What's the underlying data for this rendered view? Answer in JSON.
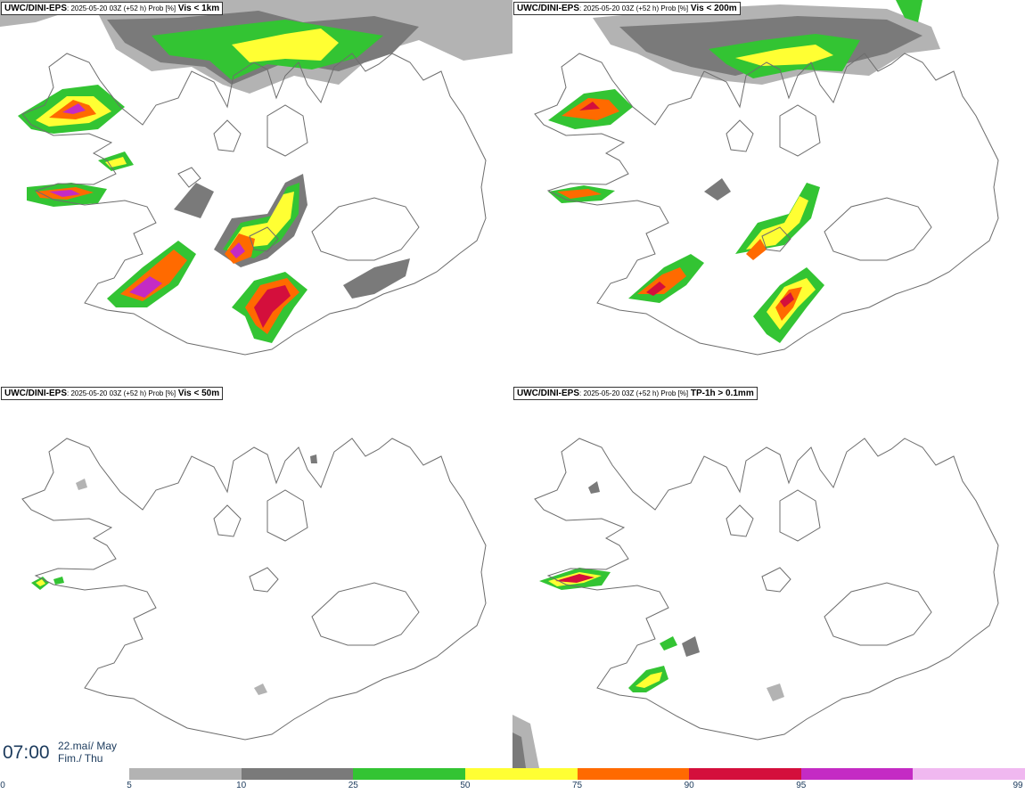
{
  "panels": [
    {
      "title_prefix": "UWC/DINI-EPS",
      "run_info": ": 2025-05-20 03Z (+52 h) Prob [%]",
      "variable": "Vis < 1km"
    },
    {
      "title_prefix": "UWC/DINI-EPS",
      "run_info": ": 2025-05-20 03Z (+52 h) Prob [%]",
      "variable": "Vis < 200m"
    },
    {
      "title_prefix": "UWC/DINI-EPS",
      "run_info": ": 2025-05-20 03Z (+52 h) Prob [%]",
      "variable": "Vis < 50m"
    },
    {
      "title_prefix": "UWC/DINI-EPS",
      "run_info": ": 2025-05-20 03Z (+52 h) Prob [%]",
      "variable": "TP-1h > 0.1mm"
    }
  ],
  "valid_time": {
    "time": "07:00",
    "date_line1": "22.maí/ May",
    "date_line2": "Fim./ Thu"
  },
  "legend": {
    "ticks": [
      "0",
      "5",
      "10",
      "25",
      "50",
      "75",
      "90",
      "95",
      "99"
    ],
    "colors": [
      "#b3b3b3",
      "#7a7a7a",
      "#33c433",
      "#ffff33",
      "#ff6a00",
      "#d40f3c",
      "#c42bc4",
      "#f0b8f0"
    ]
  }
}
